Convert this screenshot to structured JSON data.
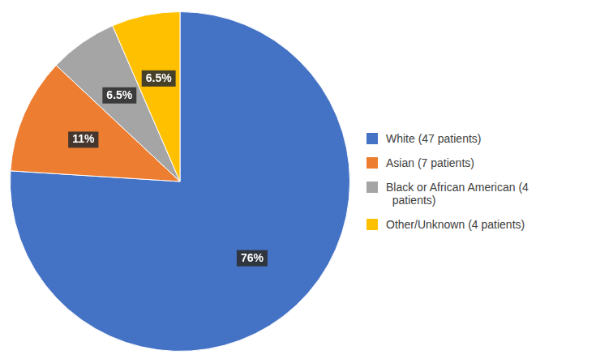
{
  "chart_data": {
    "type": "pie",
    "categories": [
      "White (47 patients)",
      "Asian (7 patients)",
      "Black or African American (4\n  patients)",
      "Other/Unknown (4 patients)"
    ],
    "values": [
      76,
      11,
      6.5,
      6.5
    ],
    "value_labels": [
      "76%",
      "11%",
      "6.5%",
      "6.5%"
    ],
    "colors": [
      "#4472C4",
      "#ED7D31",
      "#A5A5A5",
      "#FFC000"
    ],
    "data_labels": true,
    "legend": "right"
  }
}
